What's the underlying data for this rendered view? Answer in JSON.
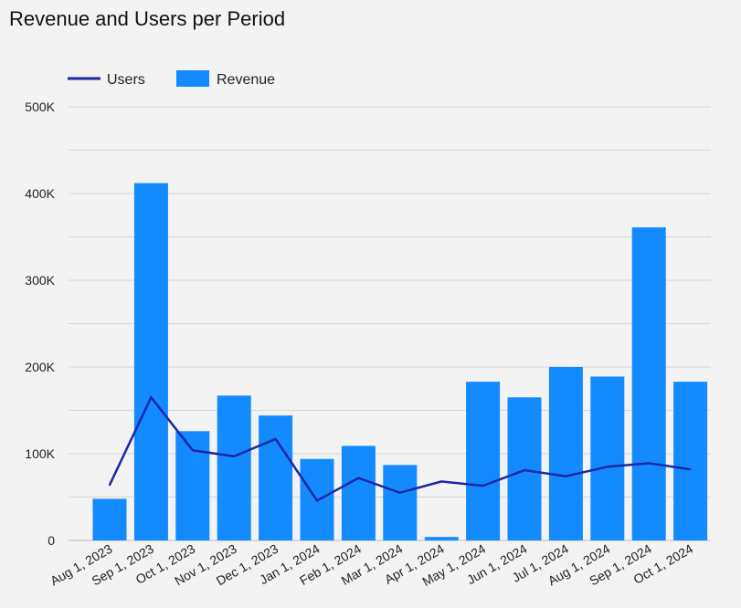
{
  "chart_data": {
    "type": "bar",
    "title": "Revenue and Users per Period",
    "xlabel": "",
    "ylabel": "",
    "ylim": [
      0,
      500000
    ],
    "yticks": [
      "0",
      "100K",
      "200K",
      "300K",
      "400K",
      "500K"
    ],
    "grid": true,
    "legend_position": "top-left",
    "colors": {
      "Users": "#1a27a3",
      "Revenue": "#148aff"
    },
    "categories": [
      "Aug 1, 2023",
      "Sep 1, 2023",
      "Oct 1, 2023",
      "Nov 1, 2023",
      "Dec 1, 2023",
      "Jan 1, 2024",
      "Feb 1, 2024",
      "Mar 1, 2024",
      "Apr 1, 2024",
      "May 1, 2024",
      "Jun 1, 2024",
      "Jul 1, 2024",
      "Aug 1, 2024",
      "Sep 1, 2024",
      "Oct 1, 2024"
    ],
    "series": [
      {
        "name": "Users",
        "type": "line",
        "values": [
          64000,
          165000,
          104000,
          97000,
          117000,
          46000,
          72000,
          55000,
          68000,
          63000,
          81000,
          74000,
          85000,
          89000,
          82000
        ]
      },
      {
        "name": "Revenue",
        "type": "bar",
        "values": [
          48000,
          412000,
          126000,
          167000,
          144000,
          94000,
          109000,
          87000,
          4000,
          183000,
          165000,
          200000,
          189000,
          361000,
          183000
        ]
      }
    ]
  }
}
